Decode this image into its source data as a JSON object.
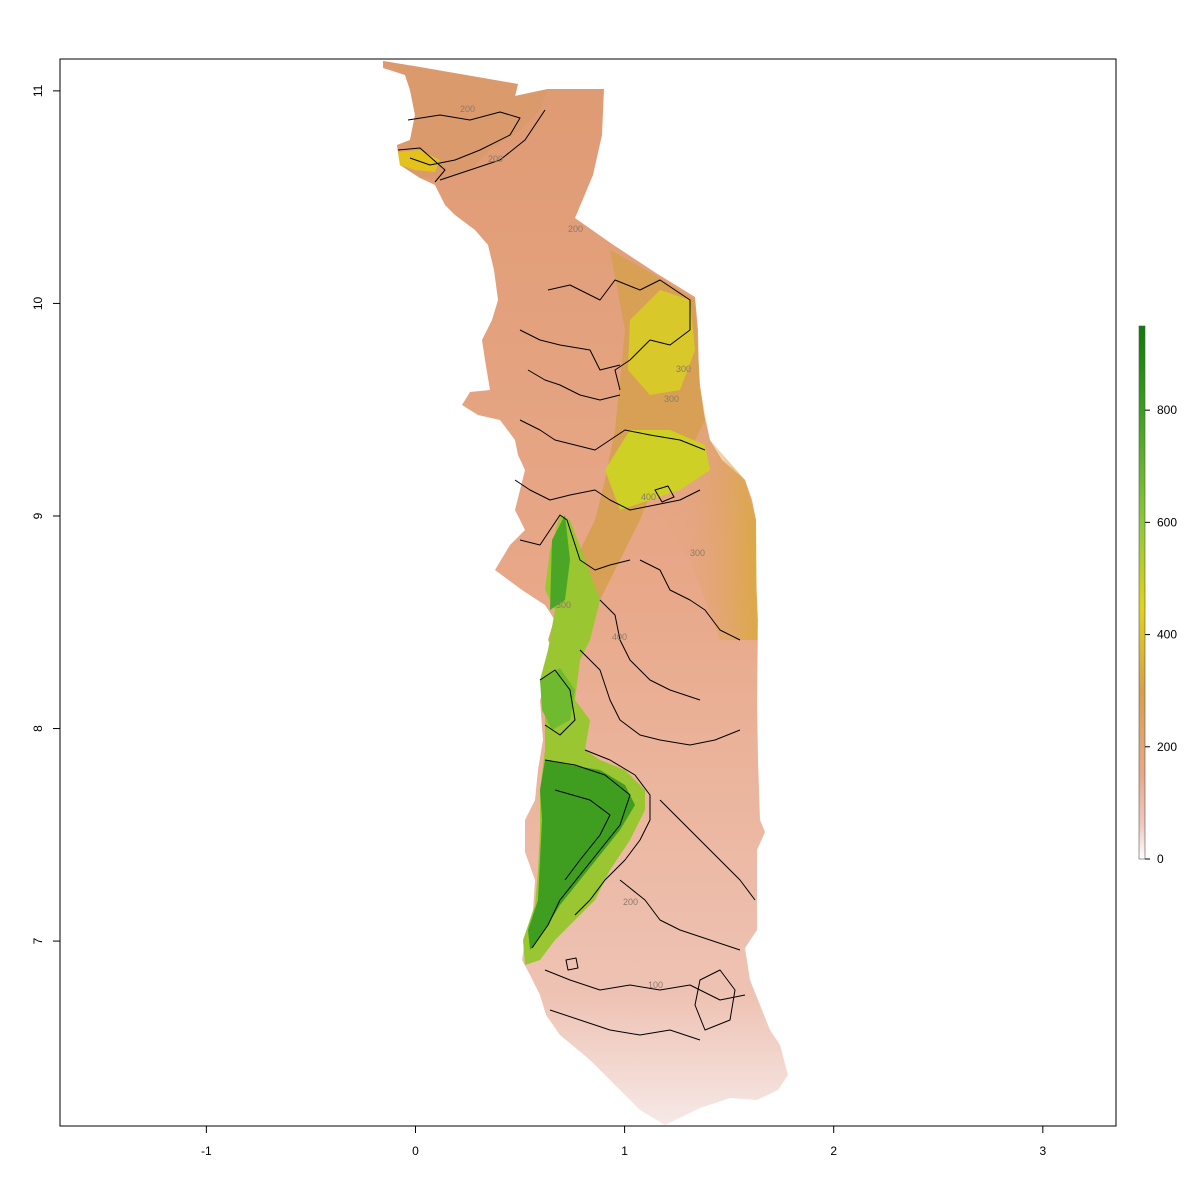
{
  "map": {
    "x_axis": {
      "ticks": [
        -1,
        0,
        1,
        2,
        3
      ],
      "range": [
        -1.7,
        3.35
      ]
    },
    "y_axis": {
      "ticks": [
        7,
        8,
        9,
        10,
        11
      ],
      "range": [
        6.13,
        11.15
      ]
    },
    "legend": {
      "ticks": [
        0,
        200,
        400,
        600,
        800
      ],
      "range": [
        0,
        950
      ],
      "colors": [
        {
          "v": 0,
          "c": "#ffffff"
        },
        {
          "v": 60,
          "c": "#f0c8c0"
        },
        {
          "v": 150,
          "c": "#e8a889"
        },
        {
          "v": 300,
          "c": "#d8a04a"
        },
        {
          "v": 450,
          "c": "#e0d21a"
        },
        {
          "v": 600,
          "c": "#8cc83c"
        },
        {
          "v": 800,
          "c": "#3c9e1e"
        },
        {
          "v": 950,
          "c": "#0e7a08"
        }
      ]
    },
    "contour_labels": [
      "200",
      "200",
      "200",
      "300",
      "300",
      "300",
      "400",
      "400",
      "300",
      "200",
      "100"
    ]
  }
}
